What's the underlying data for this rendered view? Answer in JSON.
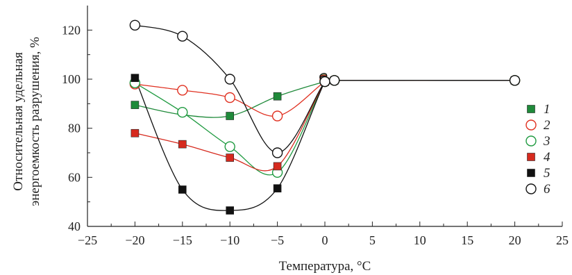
{
  "chart_data": {
    "type": "line",
    "xlabel": "Температура, °C",
    "ylabel_lines": [
      "Относительная удельная",
      "энергоемкость разрушения, %"
    ],
    "xlim": [
      -25,
      25
    ],
    "ylim": [
      40,
      130
    ],
    "xticks": [
      -25,
      -20,
      -15,
      -10,
      -5,
      0,
      5,
      10,
      15,
      20,
      25
    ],
    "xtick_labels": [
      "−25",
      "−20",
      "−15",
      "−10",
      "−5",
      "0",
      "5",
      "10",
      "15",
      "20",
      "25"
    ],
    "yticks": [
      40,
      60,
      80,
      100,
      120
    ],
    "ytick_labels": [
      "40",
      "60",
      "80",
      "100",
      "120"
    ],
    "grid": false,
    "legend_position": "right",
    "series": [
      {
        "name": "1",
        "marker": "square",
        "filled": true,
        "color": "#1f8a3a",
        "x": [
          -20,
          -15,
          -10,
          -5,
          0,
          1,
          20
        ],
        "y": [
          89.5,
          null,
          85,
          93,
          99,
          99.5,
          99.5
        ],
        "curve_x": [
          -20,
          -15,
          -10,
          -5,
          0,
          1,
          20
        ],
        "curve_y": [
          89.5,
          85.5,
          85,
          93,
          99,
          99.5,
          99.5
        ]
      },
      {
        "name": "2",
        "marker": "circle",
        "filled": false,
        "color": "#e03020",
        "x": [
          -20,
          -15,
          -10,
          -5,
          0,
          1,
          20
        ],
        "y": [
          98,
          95.5,
          92.5,
          85,
          99,
          99.5,
          99.5
        ]
      },
      {
        "name": "3",
        "marker": "circle",
        "filled": false,
        "color": "#1f9a40",
        "x": [
          -20,
          -15,
          -10,
          -5,
          0,
          1,
          20
        ],
        "y": [
          98.5,
          86.5,
          72.5,
          62,
          99,
          99.5,
          99.5
        ]
      },
      {
        "name": "4",
        "marker": "square",
        "filled": true,
        "color": "#d62a1e",
        "x": [
          -20,
          -15,
          -10,
          -5,
          0,
          1,
          20
        ],
        "y": [
          78,
          73.5,
          68,
          64.5,
          99,
          99.5,
          99.5
        ]
      },
      {
        "name": "5",
        "marker": "square",
        "filled": true,
        "color": "#111111",
        "x": [
          -20,
          -15,
          -10,
          -5,
          0,
          1,
          20
        ],
        "y": [
          100.5,
          55,
          46.5,
          55.5,
          99,
          99.5,
          99.5
        ]
      },
      {
        "name": "6",
        "marker": "circle",
        "filled": false,
        "color": "#111111",
        "x": [
          -20,
          -15,
          -10,
          -5,
          0,
          1,
          20
        ],
        "y": [
          122,
          117.5,
          100,
          70,
          99,
          99.5,
          99.5
        ]
      }
    ]
  }
}
